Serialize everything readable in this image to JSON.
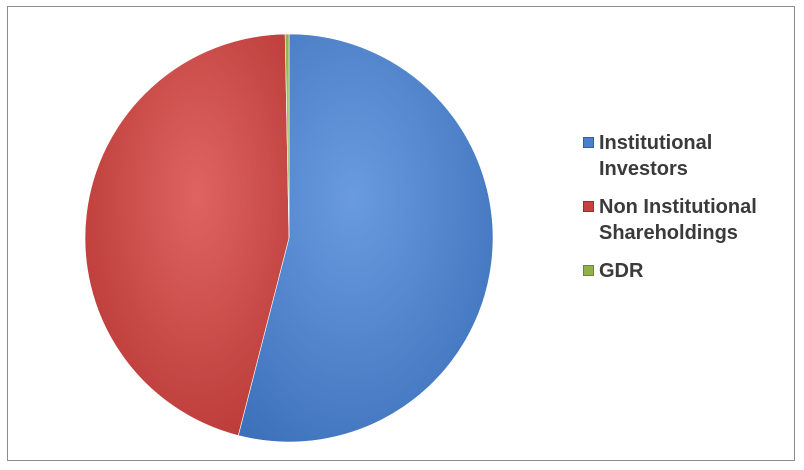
{
  "chart_data": {
    "type": "pie",
    "title": "",
    "legend_position": "right",
    "slices": [
      {
        "label": "Institutional Investors",
        "value": 54.0,
        "color": "#4a7fc9"
      },
      {
        "label": "Non Institutional Shareholdings",
        "value": 45.7,
        "color": "#c9413f"
      },
      {
        "label": "GDR",
        "value": 0.3,
        "color": "#8fb34a"
      }
    ]
  }
}
